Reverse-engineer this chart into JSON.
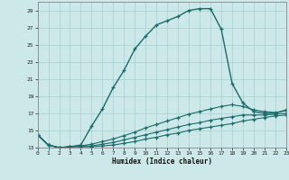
{
  "xlabel": "Humidex (Indice chaleur)",
  "bg_color": "#cce8e8",
  "grid_color": "#aad4d4",
  "line_color": "#1a6b6b",
  "xlim": [
    0,
    23
  ],
  "ylim": [
    13,
    30
  ],
  "yticks": [
    13,
    15,
    17,
    19,
    21,
    23,
    25,
    27,
    29
  ],
  "xticks": [
    0,
    1,
    2,
    3,
    4,
    5,
    6,
    7,
    8,
    9,
    10,
    11,
    12,
    13,
    14,
    15,
    16,
    17,
    18,
    19,
    20,
    21,
    22,
    23
  ],
  "curves": [
    [
      14.5,
      13.3,
      13.0,
      13.1,
      13.3,
      15.5,
      17.5,
      20.0,
      22.0,
      24.5,
      26.0,
      27.3,
      27.8,
      28.3,
      29.0,
      29.2,
      29.2,
      26.8,
      20.5,
      18.2,
      17.2,
      17.0,
      17.0,
      17.4
    ],
    [
      14.5,
      13.3,
      13.0,
      13.1,
      13.2,
      13.4,
      13.7,
      14.0,
      14.4,
      14.8,
      15.3,
      15.7,
      16.1,
      16.5,
      16.9,
      17.2,
      17.5,
      17.8,
      18.0,
      17.8,
      17.4,
      17.2,
      17.1,
      17.3
    ],
    [
      14.5,
      13.3,
      13.0,
      13.1,
      13.15,
      13.2,
      13.4,
      13.6,
      13.9,
      14.2,
      14.5,
      14.8,
      15.1,
      15.4,
      15.7,
      15.9,
      16.2,
      16.4,
      16.6,
      16.8,
      16.8,
      16.8,
      16.9,
      17.0
    ],
    [
      14.5,
      13.3,
      13.0,
      13.1,
      13.1,
      13.1,
      13.2,
      13.3,
      13.5,
      13.7,
      14.0,
      14.2,
      14.5,
      14.7,
      15.0,
      15.2,
      15.4,
      15.6,
      15.8,
      16.1,
      16.3,
      16.5,
      16.7,
      16.8
    ]
  ]
}
